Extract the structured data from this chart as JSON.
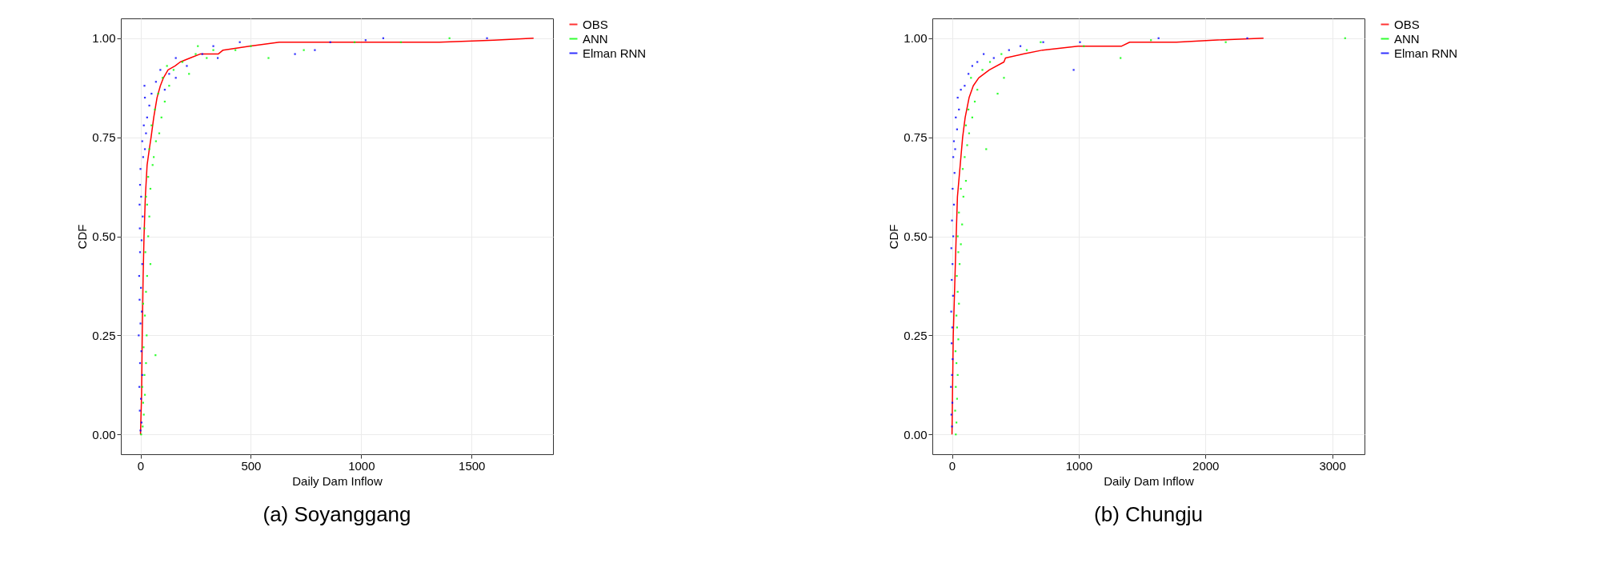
{
  "chart_data": [
    {
      "type": "scatter",
      "title": "(a) Soyanggang",
      "xlabel": "Daily Dam Inflow",
      "ylabel": "CDF",
      "xlim": [
        -89,
        1869
      ],
      "ylim": [
        -0.05,
        1.05
      ],
      "xticks": [
        0,
        500,
        1000,
        1500
      ],
      "yticks": [
        {
          "value": 0,
          "label": "0.00"
        },
        {
          "value": 0.25,
          "label": "0.25"
        },
        {
          "value": 0.5,
          "label": "0.50"
        },
        {
          "value": 0.75,
          "label": "0.75"
        },
        {
          "value": 1,
          "label": "1.00"
        }
      ],
      "grid": true,
      "legend": "right",
      "series": [
        {
          "name": "OBS",
          "type": "line",
          "color": "#ff0000",
          "x": [
            0,
            5,
            8,
            12,
            16,
            22,
            30,
            40,
            48,
            60,
            75,
            90,
            104,
            125,
            157,
            180,
            225,
            270,
            352,
            374,
            494,
            629,
            1355,
            1602,
            1781
          ],
          "values": [
            0,
            0.1,
            0.25,
            0.4,
            0.5,
            0.6,
            0.68,
            0.72,
            0.75,
            0.8,
            0.85,
            0.88,
            0.9,
            0.92,
            0.93,
            0.94,
            0.95,
            0.96,
            0.96,
            0.97,
            0.98,
            0.99,
            0.99,
            0.995,
            1.0
          ]
        },
        {
          "name": "ANN",
          "type": "scatter",
          "color": "#00ff00",
          "x": [
            3,
            10,
            15,
            12,
            20,
            8,
            18,
            25,
            68,
            14,
            28,
            20,
            12,
            25,
            30,
            45,
            22,
            35,
            18,
            40,
            30,
            25,
            45,
            35,
            55,
            60,
            40,
            70,
            85,
            50,
            95,
            65,
            110,
            80,
            130,
            100,
            150,
            120,
            220,
            190,
            300,
            250,
            330,
            260,
            430,
            580,
            500,
            740,
            860,
            970,
            1180,
            1400
          ],
          "values": [
            0.0,
            0.02,
            0.05,
            0.08,
            0.1,
            0.12,
            0.15,
            0.18,
            0.2,
            0.22,
            0.25,
            0.3,
            0.33,
            0.36,
            0.4,
            0.43,
            0.46,
            0.5,
            0.52,
            0.55,
            0.58,
            0.6,
            0.62,
            0.65,
            0.68,
            0.7,
            0.72,
            0.74,
            0.76,
            0.78,
            0.8,
            0.82,
            0.84,
            0.86,
            0.88,
            0.9,
            0.92,
            0.93,
            0.91,
            0.94,
            0.95,
            0.96,
            0.97,
            0.98,
            0.97,
            0.95,
            0.98,
            0.97,
            null,
            0.99,
            0.99,
            1.0
          ]
        },
        {
          "name": "Elman RNN",
          "type": "scatter",
          "color": "#0000ff",
          "x": [
            0,
            5,
            -3,
            2,
            -5,
            8,
            -2,
            4,
            -8,
            0,
            6,
            -4,
            2,
            -6,
            8,
            -2,
            5,
            -3,
            10,
            -4,
            3,
            -2,
            0,
            12,
            20,
            8,
            25,
            15,
            30,
            40,
            20,
            50,
            18,
            70,
            110,
            130,
            160,
            90,
            210,
            160,
            280,
            330,
            350,
            450,
            700,
            790,
            860,
            1020,
            1100,
            1570
          ],
          "values": [
            0.01,
            0.03,
            0.06,
            0.09,
            0.12,
            0.15,
            0.18,
            0.21,
            0.25,
            0.28,
            0.31,
            0.34,
            0.37,
            0.4,
            0.43,
            0.46,
            0.49,
            0.52,
            0.55,
            0.58,
            0.6,
            0.63,
            0.67,
            0.7,
            0.72,
            0.74,
            0.76,
            0.78,
            0.8,
            0.83,
            0.85,
            0.86,
            0.88,
            0.89,
            0.87,
            0.91,
            0.9,
            0.92,
            0.93,
            0.95,
            0.96,
            0.98,
            0.95,
            0.99,
            0.96,
            0.97,
            0.99,
            0.995,
            1.0,
            1.0
          ]
        }
      ]
    },
    {
      "type": "scatter",
      "title": "(b) Chungju",
      "xlabel": "Daily Dam Inflow",
      "ylabel": "CDF",
      "xlim": [
        -155,
        3255
      ],
      "ylim": [
        -0.05,
        1.05
      ],
      "xticks": [
        0,
        1000,
        2000,
        3000
      ],
      "yticks": [
        {
          "value": 0,
          "label": "0.00"
        },
        {
          "value": 0.25,
          "label": "0.25"
        },
        {
          "value": 0.5,
          "label": "0.50"
        },
        {
          "value": 0.75,
          "label": "0.75"
        },
        {
          "value": 1,
          "label": "1.00"
        }
      ],
      "grid": true,
      "legend": "right",
      "series": [
        {
          "name": "OBS",
          "type": "line",
          "color": "#ff0000",
          "x": [
            0,
            10,
            33,
            43,
            84,
            104,
            135,
            168,
            211,
            295,
            410,
            422,
            562,
            715,
            995,
            1339,
            1402,
            1771,
            2064,
            2458
          ],
          "values": [
            0,
            0.25,
            0.5,
            0.6,
            0.75,
            0.8,
            0.85,
            0.88,
            0.9,
            0.92,
            0.94,
            0.95,
            0.96,
            0.97,
            0.98,
            0.98,
            0.99,
            0.99,
            0.995,
            1.0
          ]
        },
        {
          "name": "ANN",
          "type": "scatter",
          "color": "#00ff00",
          "x": [
            30,
            35,
            25,
            40,
            30,
            45,
            35,
            28,
            50,
            40,
            35,
            55,
            45,
            38,
            60,
            50,
            70,
            45,
            80,
            55,
            90,
            70,
            110,
            85,
            100,
            120,
            270,
            135,
            110,
            160,
            130,
            180,
            360,
            200,
            150,
            240,
            410,
            300,
            390,
            590,
            700,
            1330,
            1040,
            1570,
            2160,
            3102
          ],
          "values": [
            0,
            0.03,
            0.06,
            0.09,
            0.12,
            0.15,
            0.18,
            0.21,
            0.24,
            0.27,
            0.3,
            0.33,
            0.36,
            0.4,
            0.43,
            0.46,
            0.48,
            0.5,
            0.53,
            0.56,
            0.6,
            0.62,
            0.64,
            0.67,
            0.7,
            0.73,
            0.72,
            0.76,
            0.78,
            0.8,
            0.82,
            0.84,
            0.86,
            0.87,
            0.9,
            0.92,
            0.9,
            0.94,
            0.96,
            0.97,
            0.99,
            0.95,
            0.98,
            0.995,
            0.99,
            1.0
          ]
        },
        {
          "name": "Elman RNN",
          "type": "scatter",
          "color": "#0000ff",
          "x": [
            0,
            -5,
            3,
            -8,
            0,
            5,
            -3,
            2,
            -6,
            8,
            -2,
            4,
            -5,
            10,
            0,
            15,
            5,
            20,
            10,
            25,
            15,
            40,
            30,
            55,
            45,
            70,
            100,
            130,
            160,
            200,
            250,
            330,
            450,
            540,
            720,
            960,
            1010,
            1630,
            2330
          ],
          "values": [
            0.02,
            0.05,
            0.08,
            0.12,
            0.15,
            0.19,
            0.23,
            0.27,
            0.31,
            0.35,
            0.39,
            0.43,
            0.47,
            0.5,
            0.54,
            0.58,
            0.62,
            0.66,
            0.7,
            0.72,
            0.74,
            0.77,
            0.8,
            0.82,
            0.85,
            0.87,
            0.88,
            0.91,
            0.93,
            0.94,
            0.96,
            0.95,
            0.97,
            0.98,
            0.99,
            0.92,
            0.99,
            1.0,
            1.0
          ]
        }
      ]
    }
  ]
}
